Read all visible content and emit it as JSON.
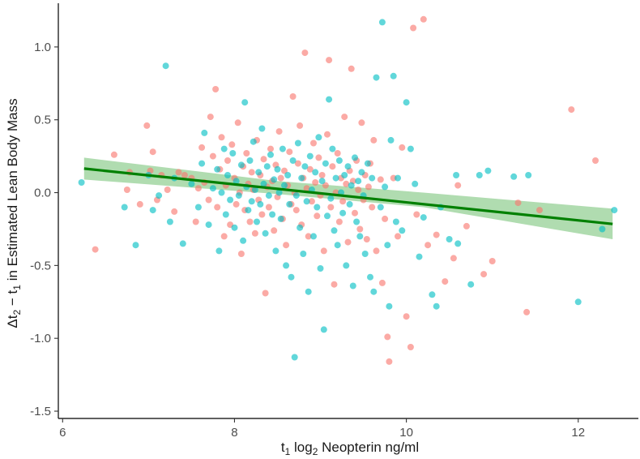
{
  "chart_data": {
    "type": "scatter",
    "title": "",
    "xlabel": {
      "main": "t",
      "sub1": "1",
      "mid": " log",
      "sub2": "2",
      "tail": " Neopterin ng/ml"
    },
    "ylabel": {
      "pre": "Δt",
      "sub1": "2",
      "mid": " − t",
      "sub2": "1",
      "tail": " in Estimated Lean Body Mass"
    },
    "xlim": [
      5.95,
      12.7
    ],
    "ylim": [
      -1.55,
      1.3
    ],
    "x_ticks": [
      6,
      8,
      10,
      12
    ],
    "x_tick_labels": [
      "6",
      "8",
      "10",
      "12"
    ],
    "y_ticks": [
      -1.5,
      -1.0,
      -0.5,
      0.0,
      0.5,
      1.0
    ],
    "y_tick_labels": [
      "-1.5",
      "-1.0",
      "-0.5",
      "0.0",
      "0.5",
      "1.0"
    ],
    "grid": false,
    "legend": "none",
    "colors": {
      "group_a": "#F8766D",
      "group_b": "#00BFC4",
      "fit": "#008000",
      "band": "#7cc47c"
    },
    "fit_line": {
      "x": [
        6.25,
        12.4
      ],
      "y": [
        0.165,
        -0.215
      ]
    },
    "confidence_band": {
      "x": [
        6.25,
        8.5,
        10.2,
        12.4
      ],
      "upper": [
        0.24,
        0.08,
        0.0,
        -0.11
      ],
      "lower": [
        0.09,
        -0.01,
        -0.1,
        -0.32
      ]
    },
    "series": [
      {
        "color_key": "group_a",
        "points": [
          [
            6.38,
            -0.39
          ],
          [
            6.6,
            0.26
          ],
          [
            6.75,
            0.02
          ],
          [
            6.78,
            0.14
          ],
          [
            6.9,
            -0.08
          ],
          [
            6.98,
            0.46
          ],
          [
            7.02,
            0.15
          ],
          [
            7.05,
            0.28
          ],
          [
            7.1,
            -0.05
          ],
          [
            7.15,
            0.12
          ],
          [
            7.22,
            0.02
          ],
          [
            7.3,
            -0.13
          ],
          [
            7.35,
            0.14
          ],
          [
            7.42,
            0.12
          ],
          [
            7.5,
            0.1
          ],
          [
            7.55,
            -0.2
          ],
          [
            7.58,
            0.03
          ],
          [
            7.62,
            0.31
          ],
          [
            7.65,
            0.07
          ],
          [
            7.7,
            -0.05
          ],
          [
            7.72,
            0.52
          ],
          [
            7.75,
            0.25
          ],
          [
            7.78,
            0.71
          ],
          [
            7.8,
            -0.1
          ],
          [
            7.83,
            0.16
          ],
          [
            7.85,
            0.38
          ],
          [
            7.88,
            -0.3
          ],
          [
            7.9,
            0.05
          ],
          [
            7.92,
            0.22
          ],
          [
            7.95,
            -0.22
          ],
          [
            7.97,
            0.33
          ],
          [
            8.0,
            0.1
          ],
          [
            8.02,
            -0.08
          ],
          [
            8.04,
            0.48
          ],
          [
            8.06,
            0.0
          ],
          [
            8.08,
            -0.42
          ],
          [
            8.1,
            0.18
          ],
          [
            8.12,
            -0.12
          ],
          [
            8.14,
            0.27
          ],
          [
            8.16,
            0.06
          ],
          [
            8.18,
            -0.2
          ],
          [
            8.2,
            0.14
          ],
          [
            8.22,
            0.02
          ],
          [
            8.24,
            -0.28
          ],
          [
            8.26,
            0.36
          ],
          [
            8.28,
            -0.05
          ],
          [
            8.3,
            0.12
          ],
          [
            8.32,
            -0.15
          ],
          [
            8.34,
            0.23
          ],
          [
            8.36,
            -0.69
          ],
          [
            8.38,
            0.04
          ],
          [
            8.4,
            -0.1
          ],
          [
            8.42,
            0.3
          ],
          [
            8.44,
            0.08
          ],
          [
            8.46,
            -0.26
          ],
          [
            8.48,
            0.19
          ],
          [
            8.5,
            -0.03
          ],
          [
            8.52,
            0.42
          ],
          [
            8.54,
            0.1
          ],
          [
            8.56,
            -0.18
          ],
          [
            8.58,
            0.15
          ],
          [
            8.6,
            -0.36
          ],
          [
            8.62,
            0.05
          ],
          [
            8.64,
            0.28
          ],
          [
            8.66,
            -0.08
          ],
          [
            8.68,
            0.66
          ],
          [
            8.7,
            0.0
          ],
          [
            8.72,
            -0.12
          ],
          [
            8.74,
            0.2
          ],
          [
            8.76,
            0.46
          ],
          [
            8.78,
            -0.22
          ],
          [
            8.8,
            0.1
          ],
          [
            8.82,
            0.96
          ],
          [
            8.84,
            0.03
          ],
          [
            8.86,
            -0.3
          ],
          [
            8.88,
            0.16
          ],
          [
            8.9,
            -0.06
          ],
          [
            8.92,
            0.34
          ],
          [
            8.94,
            0.07
          ],
          [
            8.96,
            -0.16
          ],
          [
            8.98,
            0.24
          ],
          [
            9.0,
            -0.02
          ],
          [
            9.02,
            0.12
          ],
          [
            9.04,
            -0.4
          ],
          [
            9.06,
            0.05
          ],
          [
            9.08,
            0.4
          ],
          [
            9.1,
            0.91
          ],
          [
            9.12,
            -0.1
          ],
          [
            9.14,
            0.18
          ],
          [
            9.16,
            -0.63
          ],
          [
            9.18,
            0.0
          ],
          [
            9.2,
            0.27
          ],
          [
            9.22,
            -0.2
          ],
          [
            9.24,
            0.1
          ],
          [
            9.26,
            -0.06
          ],
          [
            9.28,
            0.52
          ],
          [
            9.3,
            0.06
          ],
          [
            9.32,
            -0.34
          ],
          [
            9.34,
            0.15
          ],
          [
            9.36,
            0.85
          ],
          [
            9.38,
            0.08
          ],
          [
            9.4,
            -0.14
          ],
          [
            9.42,
            0.22
          ],
          [
            9.44,
            0.02
          ],
          [
            9.46,
            -0.25
          ],
          [
            9.48,
            0.48
          ],
          [
            9.5,
            -0.05
          ],
          [
            9.52,
            0.12
          ],
          [
            9.54,
            -0.32
          ],
          [
            9.56,
            0.04
          ],
          [
            9.58,
            0.2
          ],
          [
            9.6,
            -0.1
          ],
          [
            9.62,
            0.36
          ],
          [
            9.65,
            -0.4
          ],
          [
            9.7,
            0.09
          ],
          [
            9.72,
            -0.62
          ],
          [
            9.75,
            -0.18
          ],
          [
            9.78,
            -0.99
          ],
          [
            9.8,
            -1.16
          ],
          [
            9.85,
            0.1
          ],
          [
            9.9,
            -0.3
          ],
          [
            9.95,
            0.31
          ],
          [
            10.0,
            -0.85
          ],
          [
            10.05,
            -1.06
          ],
          [
            10.08,
            1.13
          ],
          [
            10.12,
            -0.15
          ],
          [
            10.2,
            1.19
          ],
          [
            10.25,
            -0.36
          ],
          [
            10.35,
            -0.29
          ],
          [
            10.45,
            -0.61
          ],
          [
            10.55,
            -0.45
          ],
          [
            10.6,
            0.05
          ],
          [
            10.7,
            -0.23
          ],
          [
            10.9,
            -0.56
          ],
          [
            11.0,
            -0.47
          ],
          [
            11.3,
            -0.07
          ],
          [
            11.4,
            -0.82
          ],
          [
            11.55,
            -0.12
          ],
          [
            11.92,
            0.57
          ],
          [
            12.2,
            0.22
          ]
        ]
      },
      {
        "color_key": "group_b",
        "points": [
          [
            6.22,
            0.07
          ],
          [
            6.72,
            -0.1
          ],
          [
            6.85,
            -0.36
          ],
          [
            7.0,
            0.12
          ],
          [
            7.05,
            -0.12
          ],
          [
            7.12,
            -0.02
          ],
          [
            7.2,
            0.87
          ],
          [
            7.25,
            -0.2
          ],
          [
            7.3,
            0.1
          ],
          [
            7.4,
            -0.35
          ],
          [
            7.5,
            0.06
          ],
          [
            7.58,
            -0.1
          ],
          [
            7.62,
            0.2
          ],
          [
            7.65,
            0.41
          ],
          [
            7.7,
            -0.22
          ],
          [
            7.75,
            0.03
          ],
          [
            7.8,
            0.16
          ],
          [
            7.82,
            -0.4
          ],
          [
            7.85,
            0.0
          ],
          [
            7.88,
            0.3
          ],
          [
            7.9,
            -0.15
          ],
          [
            7.92,
            0.12
          ],
          [
            7.95,
            -0.05
          ],
          [
            7.98,
            0.27
          ],
          [
            8.0,
            -0.24
          ],
          [
            8.02,
            0.08
          ],
          [
            8.05,
            -0.02
          ],
          [
            8.08,
            0.19
          ],
          [
            8.1,
            -0.33
          ],
          [
            8.12,
            0.62
          ],
          [
            8.14,
            0.04
          ],
          [
            8.16,
            -0.12
          ],
          [
            8.18,
            0.22
          ],
          [
            8.2,
            -0.06
          ],
          [
            8.22,
            0.35
          ],
          [
            8.24,
            0.02
          ],
          [
            8.26,
            -0.2
          ],
          [
            8.28,
            0.14
          ],
          [
            8.3,
            -0.08
          ],
          [
            8.32,
            0.44
          ],
          [
            8.34,
            0.06
          ],
          [
            8.36,
            -0.28
          ],
          [
            8.38,
            0.18
          ],
          [
            8.4,
            -0.02
          ],
          [
            8.42,
            0.26
          ],
          [
            8.44,
            -0.15
          ],
          [
            8.46,
            0.09
          ],
          [
            8.48,
            -0.4
          ],
          [
            8.5,
            0.16
          ],
          [
            8.52,
            0.0
          ],
          [
            8.54,
            -0.18
          ],
          [
            8.56,
            0.3
          ],
          [
            8.58,
            0.05
          ],
          [
            8.6,
            -0.5
          ],
          [
            8.62,
            0.12
          ],
          [
            8.64,
            -0.08
          ],
          [
            8.66,
            -0.58
          ],
          [
            8.68,
            0.22
          ],
          [
            8.7,
            -1.13
          ],
          [
            8.72,
            -0.02
          ],
          [
            8.74,
            0.34
          ],
          [
            8.76,
            -0.24
          ],
          [
            8.78,
            0.1
          ],
          [
            8.8,
            -0.42
          ],
          [
            8.82,
            0.18
          ],
          [
            8.84,
            -0.06
          ],
          [
            8.86,
            -0.68
          ],
          [
            8.88,
            0.25
          ],
          [
            8.9,
            0.02
          ],
          [
            8.92,
            -0.3
          ],
          [
            8.94,
            0.14
          ],
          [
            8.96,
            -0.1
          ],
          [
            8.98,
            0.38
          ],
          [
            9.0,
            -0.52
          ],
          [
            9.02,
            0.08
          ],
          [
            9.04,
            -0.94
          ],
          [
            9.06,
            0.2
          ],
          [
            9.08,
            -0.16
          ],
          [
            9.1,
            0.64
          ],
          [
            9.12,
            -0.04
          ],
          [
            9.14,
            0.3
          ],
          [
            9.16,
            -0.26
          ],
          [
            9.18,
            0.1
          ],
          [
            9.2,
            -0.36
          ],
          [
            9.22,
            0.22
          ],
          [
            9.24,
            0.0
          ],
          [
            9.26,
            -0.14
          ],
          [
            9.28,
            0.12
          ],
          [
            9.3,
            -0.5
          ],
          [
            9.32,
            0.18
          ],
          [
            9.34,
            -0.08
          ],
          [
            9.36,
            0.05
          ],
          [
            9.38,
            -0.64
          ],
          [
            9.4,
            0.24
          ],
          [
            9.42,
            -0.2
          ],
          [
            9.44,
            0.08
          ],
          [
            9.46,
            -0.3
          ],
          [
            9.48,
            0.14
          ],
          [
            9.5,
            -0.02
          ],
          [
            9.52,
            -0.42
          ],
          [
            9.55,
            0.2
          ],
          [
            9.58,
            -0.58
          ],
          [
            9.6,
            0.1
          ],
          [
            9.62,
            -0.68
          ],
          [
            9.65,
            0.79
          ],
          [
            9.7,
            -0.1
          ],
          [
            9.72,
            1.17
          ],
          [
            9.75,
            0.04
          ],
          [
            9.78,
            -0.36
          ],
          [
            9.8,
            -0.78
          ],
          [
            9.82,
            0.36
          ],
          [
            9.85,
            0.8
          ],
          [
            9.88,
            -0.2
          ],
          [
            9.9,
            0.1
          ],
          [
            9.95,
            -0.26
          ],
          [
            10.0,
            0.62
          ],
          [
            10.05,
            0.3
          ],
          [
            10.1,
            0.06
          ],
          [
            10.15,
            -0.44
          ],
          [
            10.2,
            -0.17
          ],
          [
            10.3,
            -0.7
          ],
          [
            10.35,
            -0.78
          ],
          [
            10.4,
            -0.1
          ],
          [
            10.5,
            -0.32
          ],
          [
            10.58,
            0.12
          ],
          [
            10.6,
            -0.35
          ],
          [
            10.75,
            -0.63
          ],
          [
            10.85,
            0.12
          ],
          [
            10.95,
            0.15
          ],
          [
            11.25,
            0.11
          ],
          [
            11.42,
            0.12
          ],
          [
            12.0,
            -0.75
          ],
          [
            12.28,
            -0.25
          ],
          [
            12.42,
            -0.12
          ]
        ]
      }
    ]
  }
}
